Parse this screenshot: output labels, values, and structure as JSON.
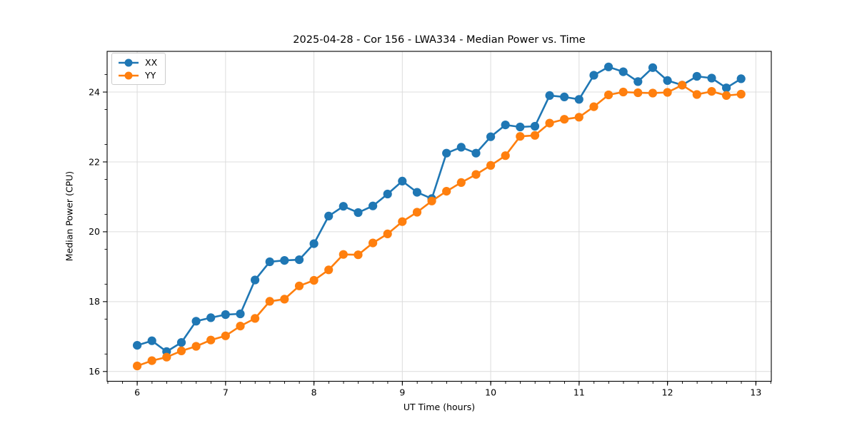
{
  "figure": {
    "title": "2025-04-28 - Cor 156 - LWA334 - Median Power vs. Time",
    "x_label": "UT Time (hours)",
    "y_label": "Median Power (CPU)"
  },
  "legend": {
    "position": "upper left",
    "items": [
      {
        "label": "XX",
        "color": "#1f77b4"
      },
      {
        "label": "YY",
        "color": "#ff7f0e"
      }
    ]
  },
  "chart_data": {
    "type": "line",
    "title": "2025-04-28 - Cor 156 - LWA334 - Median Power vs. Time",
    "xlabel": "UT Time (hours)",
    "ylabel": "Median Power (CPU)",
    "marker": "o",
    "grid": true,
    "grid_color": "#dcdcdc",
    "spine_color": "#000000",
    "legend_position": "upper left",
    "xlim": [
      5.66,
      13.175
    ],
    "ylim": [
      15.72,
      25.165
    ],
    "x_ticks": [
      6,
      7,
      8,
      9,
      10,
      11,
      12,
      13
    ],
    "y_ticks": [
      16,
      18,
      20,
      22,
      24
    ],
    "x_minor_step": 0.1667,
    "y_minor_step": 0.5,
    "x": [
      6.0,
      6.1667,
      6.3333,
      6.5,
      6.6667,
      6.8333,
      7.0,
      7.1667,
      7.3333,
      7.5,
      7.6667,
      7.8333,
      8.0,
      8.1667,
      8.3333,
      8.5,
      8.6667,
      8.8333,
      9.0,
      9.1667,
      9.3333,
      9.5,
      9.6667,
      9.8333,
      10.0,
      10.1667,
      10.3333,
      10.5,
      10.6667,
      10.8333,
      11.0,
      11.1667,
      11.3333,
      11.5,
      11.6667,
      11.8333,
      12.0,
      12.1667,
      12.3333,
      12.5,
      12.6667,
      12.8333
    ],
    "series": [
      {
        "name": "XX",
        "color": "#1f77b4",
        "values": [
          16.75,
          16.88,
          16.57,
          16.83,
          17.44,
          17.54,
          17.63,
          17.65,
          18.62,
          19.14,
          19.18,
          19.2,
          19.66,
          20.45,
          20.73,
          20.55,
          20.74,
          21.08,
          21.45,
          21.13,
          20.95,
          22.25,
          22.42,
          22.25,
          22.72,
          23.06,
          23.0,
          23.02,
          23.9,
          23.86,
          23.79,
          24.48,
          24.72,
          24.58,
          24.3,
          24.7,
          24.33,
          24.2,
          24.45,
          24.4,
          24.12,
          24.38
        ]
      },
      {
        "name": "YY",
        "color": "#ff7f0e",
        "values": [
          16.16,
          16.31,
          16.41,
          16.59,
          16.72,
          16.9,
          17.02,
          17.3,
          17.52,
          18.01,
          18.07,
          18.45,
          18.61,
          18.91,
          19.35,
          19.34,
          19.68,
          19.94,
          20.29,
          20.56,
          20.88,
          21.16,
          21.41,
          21.64,
          21.9,
          22.18,
          22.73,
          22.76,
          23.11,
          23.22,
          23.28,
          23.58,
          23.92,
          24.0,
          23.98,
          23.97,
          23.99,
          24.2,
          23.93,
          24.02,
          23.9,
          23.94
        ]
      }
    ]
  }
}
